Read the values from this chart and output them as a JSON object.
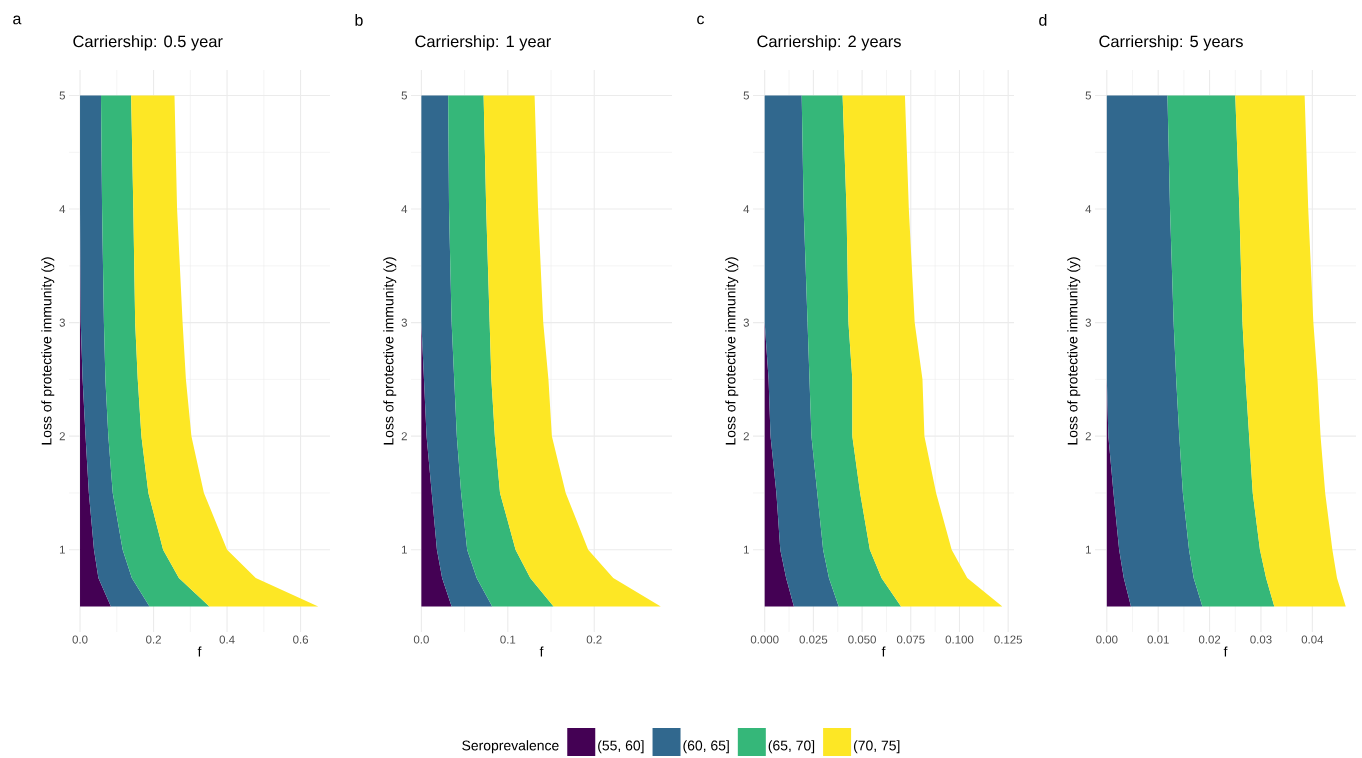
{
  "chart_data": [
    {
      "type": "area",
      "stacked": true,
      "orientation": "horizontal",
      "title": "Carriership: 0.5 year",
      "xlabel": "f",
      "ylabel": "Loss of protective immunity (y)",
      "annotations": [
        "a"
      ],
      "legend": "bottom",
      "legend_title": "Seroprevalence",
      "grid": true,
      "x": [
        0.5,
        0.75,
        1,
        1.5,
        2,
        2.5,
        3,
        4,
        5
      ],
      "xlim": [
        -0.03,
        0.68
      ],
      "xticks": [
        {
          "value": 0,
          "label": "0.0"
        },
        {
          "value": 0.2,
          "label": "0.2"
        },
        {
          "value": 0.4,
          "label": "0.4"
        },
        {
          "value": 0.6,
          "label": "0.6"
        }
      ],
      "ylim": [
        0.275,
        5.225
      ],
      "yticks": [
        1,
        2,
        3,
        4,
        5
      ],
      "series": [
        {
          "name": "(55, 60]",
          "color": "#440154",
          "values": [
            0.084,
            0.05,
            0.038,
            0.024,
            0.015,
            0.007,
            0.002,
            0,
            0
          ]
        },
        {
          "name": "(60, 65]",
          "color": "#31688e",
          "values": [
            0.105,
            0.091,
            0.078,
            0.065,
            0.062,
            0.062,
            0.063,
            0.06,
            0.057
          ]
        },
        {
          "name": "(65, 70]",
          "color": "#35b779",
          "values": [
            0.163,
            0.128,
            0.11,
            0.097,
            0.09,
            0.088,
            0.085,
            0.085,
            0.082
          ]
        },
        {
          "name": "(70, 75]",
          "color": "#fde725",
          "values": [
            0.296,
            0.209,
            0.174,
            0.151,
            0.136,
            0.131,
            0.129,
            0.119,
            0.118
          ]
        }
      ]
    },
    {
      "type": "area",
      "stacked": true,
      "orientation": "horizontal",
      "title": "Carriership: 1 year",
      "xlabel": "f",
      "ylabel": "Loss of protective immunity (y)",
      "annotations": [
        "b"
      ],
      "grid": true,
      "x": [
        0.5,
        0.75,
        1,
        1.5,
        2,
        2.5,
        3,
        4,
        5
      ],
      "xlim": [
        -0.012,
        0.29
      ],
      "xticks": [
        {
          "value": 0,
          "label": "0.0"
        },
        {
          "value": 0.1,
          "label": "0.1"
        },
        {
          "value": 0.2,
          "label": "0.2"
        }
      ],
      "ylim": [
        0.275,
        5.225
      ],
      "yticks": [
        1,
        2,
        3,
        4,
        5
      ],
      "series": [
        {
          "color": "#440154",
          "values": [
            0.035,
            0.024,
            0.018,
            0.012,
            0.006,
            0.003,
            0,
            0,
            0
          ]
        },
        {
          "color": "#31688e",
          "values": [
            0.047,
            0.04,
            0.035,
            0.034,
            0.035,
            0.035,
            0.035,
            0.032,
            0.031
          ]
        },
        {
          "color": "#35b779",
          "values": [
            0.071,
            0.062,
            0.056,
            0.045,
            0.044,
            0.043,
            0.044,
            0.043,
            0.041
          ]
        },
        {
          "color": "#fde725",
          "values": [
            0.124,
            0.096,
            0.084,
            0.076,
            0.066,
            0.066,
            0.062,
            0.06,
            0.059
          ]
        }
      ]
    },
    {
      "type": "area",
      "stacked": true,
      "orientation": "horizontal",
      "title": "Carriership: 2 years",
      "xlabel": "f",
      "ylabel": "Loss of protective immunity (y)",
      "annotations": [
        "c"
      ],
      "grid": true,
      "x": [
        0.5,
        0.75,
        1,
        1.5,
        2,
        2.5,
        3,
        4,
        5
      ],
      "xlim": [
        -0.006,
        0.128
      ],
      "xticks": [
        {
          "value": 0,
          "label": "0.000"
        },
        0.025,
        {
          "value": 0.05,
          "label": "0.050"
        },
        0.075,
        {
          "value": 0.1,
          "label": "0.100"
        },
        0.125
      ],
      "ylim": [
        0.275,
        5.225
      ],
      "yticks": [
        1,
        2,
        3,
        4,
        5
      ],
      "series": [
        {
          "color": "#440154",
          "values": [
            0.015,
            0.011,
            0.008,
            0.006,
            0.003,
            0.002,
            0,
            0,
            0
          ]
        },
        {
          "color": "#31688e",
          "values": [
            0.023,
            0.022,
            0.022,
            0.021,
            0.021,
            0.021,
            0.022,
            0.02,
            0.019
          ]
        },
        {
          "color": "#35b779",
          "values": [
            0.032,
            0.027,
            0.024,
            0.022,
            0.021,
            0.022,
            0.021,
            0.022,
            0.021
          ]
        },
        {
          "color": "#fde725",
          "values": [
            0.052,
            0.044,
            0.042,
            0.039,
            0.037,
            0.036,
            0.034,
            0.032,
            0.032
          ]
        }
      ]
    },
    {
      "type": "area",
      "stacked": true,
      "orientation": "horizontal",
      "title": "Carriership: 5 years",
      "xlabel": "f",
      "ylabel": "Loss of protective immunity (y)",
      "annotations": [
        "d"
      ],
      "grid": true,
      "x": [
        0.5,
        0.75,
        1,
        1.5,
        2,
        2.5,
        3,
        4,
        5
      ],
      "xlim": [
        -0.0023,
        0.0485
      ],
      "xticks": [
        {
          "value": 0,
          "label": "0.00"
        },
        {
          "value": 0.01,
          "label": "0.01"
        },
        {
          "value": 0.02,
          "label": "0.02"
        },
        {
          "value": 0.03,
          "label": "0.03"
        },
        {
          "value": 0.04,
          "label": "0.04"
        }
      ],
      "ylim": [
        0.275,
        5.225
      ],
      "yticks": [
        1,
        2,
        3,
        4,
        5
      ],
      "series": [
        {
          "color": "#440154",
          "values": [
            0.0047,
            0.0033,
            0.0024,
            0.0013,
            0.0003,
            0,
            0,
            0,
            0
          ]
        },
        {
          "color": "#31688e",
          "values": [
            0.0139,
            0.0136,
            0.0136,
            0.0135,
            0.0138,
            0.0135,
            0.013,
            0.0123,
            0.0118
          ]
        },
        {
          "color": "#35b779",
          "values": [
            0.014,
            0.0141,
            0.0138,
            0.0136,
            0.0136,
            0.0135,
            0.0134,
            0.0135,
            0.0132
          ]
        },
        {
          "color": "#fde725",
          "values": [
            0.0139,
            0.0138,
            0.0141,
            0.0141,
            0.0139,
            0.014,
            0.0138,
            0.0134,
            0.0135
          ]
        }
      ]
    }
  ]
}
